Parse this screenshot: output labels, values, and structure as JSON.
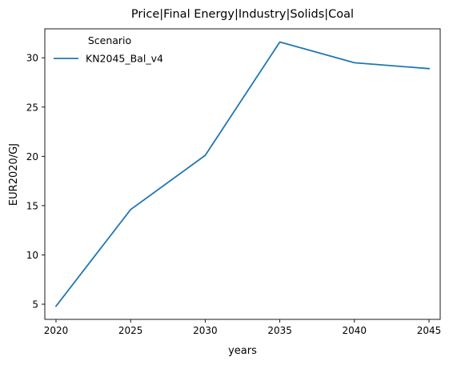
{
  "chart_data": {
    "type": "line",
    "title": "Price|Final Energy|Industry|Solids|Coal",
    "xlabel": "years",
    "ylabel": "EUR2020/GJ",
    "x": [
      2020,
      2025,
      2030,
      2035,
      2040,
      2045
    ],
    "series": [
      {
        "name": "KN2045_Bal_v4",
        "values": [
          4.8,
          14.6,
          20.1,
          31.6,
          29.5,
          28.9
        ],
        "color": "#1f77b4"
      }
    ],
    "xticks": [
      2020,
      2025,
      2030,
      2035,
      2040,
      2045
    ],
    "yticks": [
      5,
      10,
      15,
      20,
      25,
      30
    ],
    "xlim": [
      2019.25,
      2045.75
    ],
    "ylim": [
      3.46,
      32.94
    ],
    "grid": false,
    "legend": {
      "title": "Scenario",
      "placement": "top-left"
    }
  }
}
